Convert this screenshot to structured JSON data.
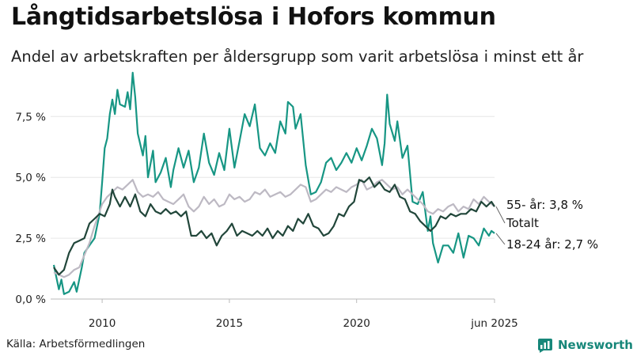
{
  "title": "Långtidsarbetslösa i Hofors kommun",
  "subtitle": "Andel av arbetskraften per åldersgrupp som varit arbetslösa i minst ett år",
  "source": "Källa: Arbetsförmedlingen",
  "brand": "Newsworthy",
  "colors": {
    "age_55_plus": "#21463a",
    "total": "#bdb9c3",
    "age_18_24": "#179684",
    "brand": "#17877a",
    "grid": "#e6e6e6",
    "axis": "#bbbbbb"
  },
  "chart_data": {
    "type": "line",
    "xlim": [
      2008.0,
      2025.45
    ],
    "ylim": [
      0,
      9.2
    ],
    "x_ticks": [
      2010,
      2015,
      2020,
      2025.42
    ],
    "x_tick_labels": [
      "2010",
      "2015",
      "2020",
      "jun 2025"
    ],
    "y_ticks": [
      0,
      2.5,
      5.0,
      7.5
    ],
    "y_tick_labels": [
      "0,0 %",
      "2,5 %",
      "5,0 %",
      "7,5 %"
    ],
    "series": [
      {
        "name": "18-24 år",
        "key": "age_18_24",
        "end_label": "18-24 år: 2,7 %",
        "x": [
          2008.1,
          2008.3,
          2008.4,
          2008.5,
          2008.7,
          2008.9,
          2009.0,
          2009.2,
          2009.3,
          2009.5,
          2009.7,
          2009.9,
          2010.0,
          2010.1,
          2010.2,
          2010.3,
          2010.4,
          2010.5,
          2010.6,
          2010.7,
          2010.9,
          2011.0,
          2011.1,
          2011.2,
          2011.3,
          2011.4,
          2011.6,
          2011.7,
          2011.8,
          2012.0,
          2012.1,
          2012.3,
          2012.5,
          2012.7,
          2012.8,
          2013.0,
          2013.2,
          2013.4,
          2013.6,
          2013.8,
          2014.0,
          2014.2,
          2014.4,
          2014.6,
          2014.8,
          2015.0,
          2015.2,
          2015.4,
          2015.6,
          2015.8,
          2016.0,
          2016.2,
          2016.4,
          2016.6,
          2016.8,
          2017.0,
          2017.2,
          2017.3,
          2017.5,
          2017.6,
          2017.8,
          2018.0,
          2018.2,
          2018.4,
          2018.6,
          2018.8,
          2019.0,
          2019.2,
          2019.4,
          2019.6,
          2019.8,
          2020.0,
          2020.2,
          2020.4,
          2020.6,
          2020.8,
          2021.0,
          2021.1,
          2021.2,
          2021.3,
          2021.5,
          2021.6,
          2021.8,
          2022.0,
          2022.2,
          2022.4,
          2022.6,
          2022.8,
          2022.9,
          2023.0,
          2023.2,
          2023.4,
          2023.6,
          2023.8,
          2024.0,
          2024.2,
          2024.4,
          2024.6,
          2024.8,
          2025.0,
          2025.2,
          2025.3,
          2025.42
        ],
        "y": [
          1.4,
          0.4,
          0.8,
          0.2,
          0.3,
          0.7,
          0.3,
          1.3,
          1.9,
          2.2,
          2.5,
          3.5,
          4.8,
          6.2,
          6.6,
          7.6,
          8.2,
          7.6,
          8.6,
          8.0,
          7.9,
          8.5,
          7.8,
          9.3,
          8.3,
          6.8,
          5.9,
          6.7,
          5.0,
          6.1,
          4.8,
          5.2,
          5.8,
          4.6,
          5.3,
          6.2,
          5.4,
          6.1,
          4.8,
          5.4,
          6.8,
          5.6,
          5.1,
          6.0,
          5.3,
          7.0,
          5.4,
          6.5,
          7.6,
          7.1,
          8.0,
          6.2,
          5.9,
          6.4,
          6.0,
          7.3,
          6.8,
          8.1,
          7.9,
          7.0,
          7.6,
          5.5,
          4.3,
          4.4,
          4.8,
          5.6,
          5.8,
          5.3,
          5.6,
          6.0,
          5.6,
          6.2,
          5.7,
          6.3,
          7.0,
          6.6,
          5.5,
          6.4,
          8.4,
          7.2,
          6.5,
          7.3,
          5.8,
          6.3,
          4.0,
          3.9,
          4.4,
          2.8,
          3.4,
          2.3,
          1.5,
          2.2,
          2.2,
          1.9,
          2.7,
          1.7,
          2.6,
          2.5,
          2.2,
          2.9,
          2.6,
          2.8,
          2.7
        ]
      },
      {
        "name": "Totalt",
        "key": "total",
        "end_label": "Totalt",
        "x": [
          2008.1,
          2008.3,
          2008.5,
          2008.7,
          2008.9,
          2009.1,
          2009.3,
          2009.5,
          2009.7,
          2009.9,
          2010.0,
          2010.2,
          2010.4,
          2010.6,
          2010.8,
          2011.0,
          2011.2,
          2011.4,
          2011.6,
          2011.8,
          2012.0,
          2012.2,
          2012.4,
          2012.6,
          2012.8,
          2013.0,
          2013.2,
          2013.4,
          2013.6,
          2013.8,
          2014.0,
          2014.2,
          2014.4,
          2014.6,
          2014.8,
          2015.0,
          2015.2,
          2015.4,
          2015.6,
          2015.8,
          2016.0,
          2016.2,
          2016.4,
          2016.6,
          2016.8,
          2017.0,
          2017.2,
          2017.4,
          2017.6,
          2017.8,
          2018.0,
          2018.2,
          2018.4,
          2018.6,
          2018.8,
          2019.0,
          2019.2,
          2019.4,
          2019.6,
          2019.8,
          2020.0,
          2020.2,
          2020.4,
          2020.6,
          2020.8,
          2021.0,
          2021.2,
          2021.4,
          2021.6,
          2021.8,
          2022.0,
          2022.2,
          2022.4,
          2022.6,
          2022.8,
          2023.0,
          2023.2,
          2023.4,
          2023.6,
          2023.8,
          2024.0,
          2024.2,
          2024.4,
          2024.6,
          2024.8,
          2025.0,
          2025.2,
          2025.42
        ],
        "y": [
          1.1,
          1.0,
          0.9,
          1.0,
          1.2,
          1.3,
          1.8,
          2.3,
          3.0,
          3.6,
          3.9,
          4.2,
          4.4,
          4.6,
          4.5,
          4.7,
          4.9,
          4.4,
          4.2,
          4.3,
          4.2,
          4.4,
          4.1,
          4.0,
          3.9,
          4.1,
          4.3,
          3.8,
          3.6,
          3.8,
          4.2,
          3.9,
          4.1,
          3.8,
          3.9,
          4.3,
          4.1,
          4.2,
          4.0,
          4.1,
          4.4,
          4.3,
          4.5,
          4.2,
          4.3,
          4.4,
          4.2,
          4.3,
          4.5,
          4.7,
          4.6,
          4.0,
          4.1,
          4.3,
          4.5,
          4.4,
          4.6,
          4.5,
          4.4,
          4.6,
          4.7,
          4.9,
          4.5,
          4.6,
          4.8,
          4.9,
          4.7,
          4.5,
          4.6,
          4.3,
          4.5,
          4.3,
          4.1,
          3.9,
          3.6,
          3.5,
          3.7,
          3.6,
          3.8,
          3.9,
          3.6,
          3.8,
          3.7,
          4.1,
          3.9,
          4.2,
          4.0,
          3.8
        ]
      },
      {
        "name": "55- år",
        "key": "age_55_plus",
        "end_label": "55- år: 3,8 %",
        "x": [
          2008.1,
          2008.3,
          2008.5,
          2008.7,
          2008.9,
          2009.1,
          2009.3,
          2009.5,
          2009.7,
          2009.9,
          2010.1,
          2010.3,
          2010.4,
          2010.5,
          2010.7,
          2010.9,
          2011.1,
          2011.3,
          2011.5,
          2011.7,
          2011.9,
          2012.1,
          2012.3,
          2012.5,
          2012.7,
          2012.9,
          2013.1,
          2013.3,
          2013.5,
          2013.7,
          2013.9,
          2014.1,
          2014.3,
          2014.5,
          2014.7,
          2014.9,
          2015.1,
          2015.3,
          2015.5,
          2015.7,
          2015.9,
          2016.1,
          2016.3,
          2016.5,
          2016.7,
          2016.9,
          2017.1,
          2017.3,
          2017.5,
          2017.7,
          2017.9,
          2018.1,
          2018.3,
          2018.5,
          2018.7,
          2018.9,
          2019.1,
          2019.3,
          2019.5,
          2019.7,
          2019.9,
          2020.1,
          2020.3,
          2020.5,
          2020.7,
          2020.9,
          2021.1,
          2021.3,
          2021.5,
          2021.7,
          2021.9,
          2022.1,
          2022.3,
          2022.5,
          2022.7,
          2022.9,
          2023.1,
          2023.3,
          2023.5,
          2023.7,
          2023.9,
          2024.1,
          2024.3,
          2024.5,
          2024.7,
          2024.9,
          2025.1,
          2025.3,
          2025.42
        ],
        "y": [
          1.3,
          1.0,
          1.2,
          1.9,
          2.3,
          2.4,
          2.5,
          3.1,
          3.3,
          3.5,
          3.4,
          3.9,
          4.5,
          4.2,
          3.8,
          4.2,
          3.8,
          4.3,
          3.6,
          3.4,
          3.9,
          3.6,
          3.5,
          3.7,
          3.5,
          3.6,
          3.4,
          3.6,
          2.6,
          2.6,
          2.8,
          2.5,
          2.7,
          2.2,
          2.6,
          2.8,
          3.1,
          2.6,
          2.8,
          2.7,
          2.6,
          2.8,
          2.6,
          2.9,
          2.5,
          2.8,
          2.6,
          3.0,
          2.8,
          3.3,
          3.1,
          3.5,
          3.0,
          2.9,
          2.6,
          2.7,
          3.0,
          3.5,
          3.4,
          3.8,
          4.0,
          4.9,
          4.8,
          5.0,
          4.6,
          4.8,
          4.5,
          4.4,
          4.7,
          4.2,
          4.1,
          3.6,
          3.5,
          3.2,
          3.0,
          2.8,
          3.0,
          3.4,
          3.3,
          3.5,
          3.4,
          3.5,
          3.5,
          3.7,
          3.6,
          4.0,
          3.8,
          4.0,
          3.8
        ]
      }
    ]
  }
}
